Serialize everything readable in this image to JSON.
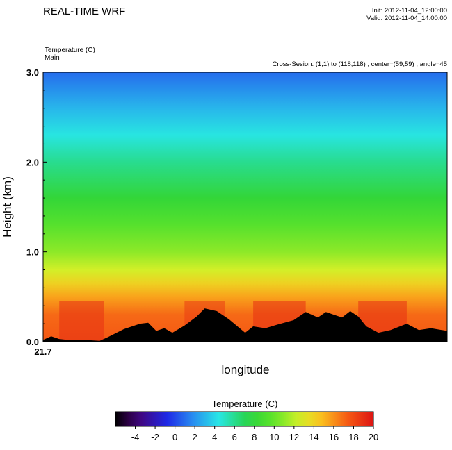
{
  "header": {
    "title": "REAL-TIME WRF",
    "init": "Init: 2012-11-04_12:00:00",
    "valid": "Valid: 2012-11-04_14:00:00",
    "field": "Temperature   (C)",
    "field_sub": "Main",
    "cross_section": "Cross-Sesion: (1,1) to (118,118) ; center=(59,59) ; angle=45"
  },
  "chart_data": {
    "type": "heatmap",
    "title": "REAL-TIME WRF",
    "xlabel": "longitude",
    "ylabel": "Height (km)",
    "x_tick_labels": [
      "21.7"
    ],
    "y_ticks": [
      0.0,
      1.0,
      2.0,
      3.0
    ],
    "y_tick_labels": [
      "0.0",
      "1.0",
      "2.0",
      "3.0"
    ],
    "ylim": [
      0,
      3
    ],
    "colorbar": {
      "title": "Temperature   (C)",
      "min": -6,
      "max": 20,
      "tick_values": [
        -4,
        -2,
        0,
        2,
        4,
        6,
        8,
        10,
        12,
        14,
        16,
        18,
        20
      ],
      "tick_labels": [
        "-4",
        "-2",
        "0",
        "2",
        "4",
        "6",
        "8",
        "10",
        "12",
        "14",
        "16",
        "18",
        "20"
      ]
    },
    "temperature_profile": {
      "height_km": [
        0.0,
        0.3,
        0.5,
        0.65,
        0.8,
        1.0,
        1.3,
        1.6,
        2.0,
        2.3,
        2.6,
        3.0
      ],
      "temp_c": [
        17.5,
        17.0,
        15.5,
        14.0,
        12.5,
        11.0,
        9.5,
        8.0,
        6.0,
        4.5,
        3.0,
        1.0
      ]
    },
    "terrain": {
      "x_fraction": [
        0.0,
        0.02,
        0.04,
        0.06,
        0.1,
        0.14,
        0.16,
        0.2,
        0.24,
        0.26,
        0.28,
        0.3,
        0.32,
        0.35,
        0.38,
        0.4,
        0.43,
        0.46,
        0.5,
        0.52,
        0.55,
        0.58,
        0.62,
        0.65,
        0.68,
        0.7,
        0.72,
        0.74,
        0.76,
        0.78,
        0.8,
        0.83,
        0.86,
        0.9,
        0.93,
        0.96,
        1.0
      ],
      "height_km": [
        0.02,
        0.06,
        0.03,
        0.02,
        0.02,
        0.01,
        0.05,
        0.14,
        0.2,
        0.21,
        0.12,
        0.15,
        0.1,
        0.18,
        0.28,
        0.37,
        0.34,
        0.25,
        0.1,
        0.17,
        0.15,
        0.19,
        0.24,
        0.33,
        0.27,
        0.33,
        0.3,
        0.27,
        0.34,
        0.28,
        0.17,
        0.1,
        0.13,
        0.2,
        0.13,
        0.15,
        0.12
      ]
    }
  }
}
